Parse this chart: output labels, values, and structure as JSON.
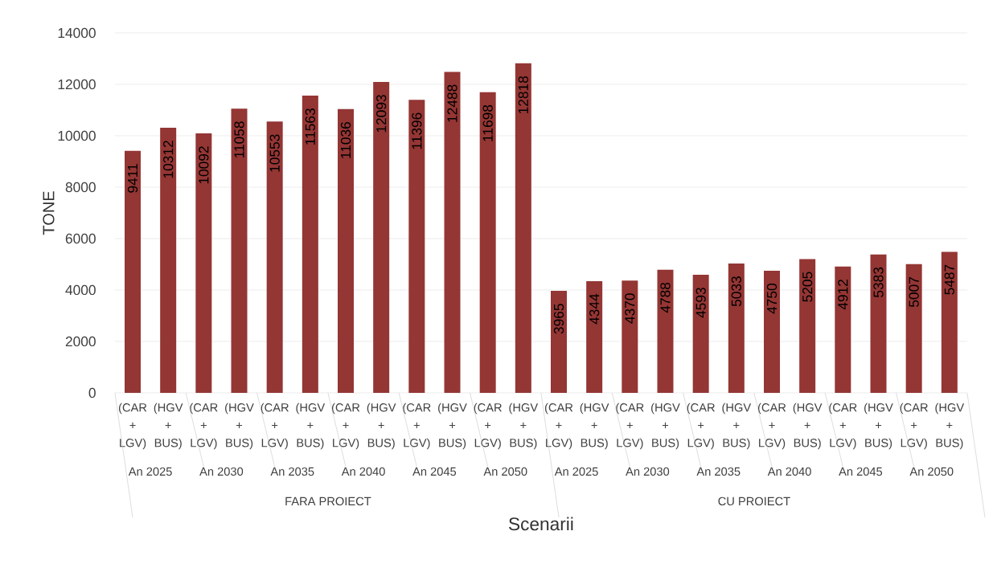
{
  "chart_data": {
    "type": "bar",
    "ylabel": "TONE",
    "xlabel": "Scenarii",
    "categories": [
      "(CAR + LGV)",
      "(HGV + BUS)",
      "(CAR + LGV)",
      "(HGV + BUS)",
      "(CAR + LGV)",
      "(HGV + BUS)",
      "(CAR + LGV)",
      "(HGV + BUS)",
      "(CAR + LGV)",
      "(HGV + BUS)",
      "(CAR + LGV)",
      "(HGV + BUS)",
      "(CAR + LGV)",
      "(HGV + BUS)",
      "(CAR + LGV)",
      "(HGV + BUS)",
      "(CAR + LGV)",
      "(HGV + BUS)",
      "(CAR + LGV)",
      "(HGV + BUS)",
      "(CAR + LGV)",
      "(HGV + BUS)",
      "(CAR + LGV)",
      "(HGV + BUS)"
    ],
    "values": [
      9411,
      10312,
      10092,
      11058,
      10553,
      11563,
      11036,
      12093,
      11396,
      12488,
      11698,
      12818,
      3965,
      4344,
      4370,
      4788,
      4593,
      5033,
      4750,
      5205,
      4912,
      5383,
      5007,
      5487
    ],
    "color": "#943634",
    "data_labels": true,
    "grid": "y",
    "ylim": [
      0,
      14000
    ],
    "yticks": [
      0,
      2000,
      4000,
      6000,
      8000,
      10000,
      12000,
      14000
    ],
    "annotations": [
      "An 2025",
      "An 2030",
      "An 2035",
      "An 2040",
      "An 2045",
      "An 2050",
      "An 2025",
      "An 2030",
      "An 2035",
      "An 2040",
      "An 2045",
      "An 2050",
      "FARA PROIECT",
      "CU PROIECT"
    ]
  }
}
